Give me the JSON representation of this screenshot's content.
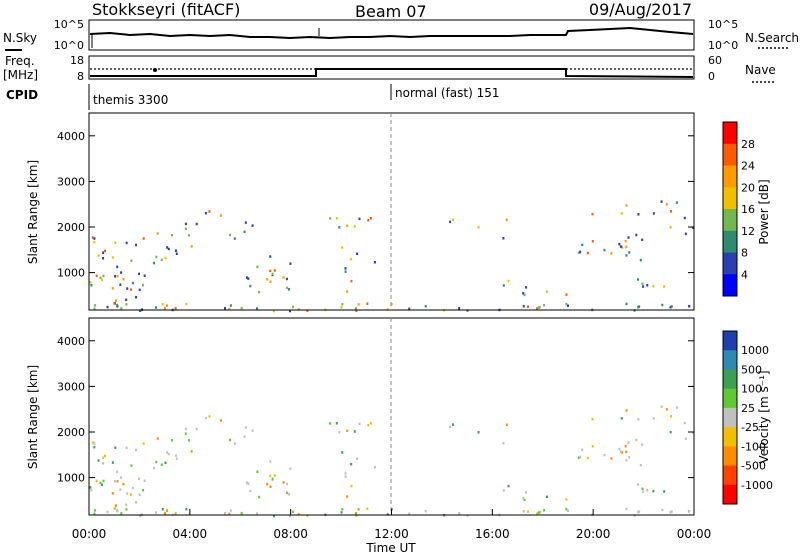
{
  "header": {
    "station": "Stokkseyri (fitACF)",
    "beam": "Beam 07",
    "date": "09/Aug/2017"
  },
  "noise_panel": {
    "left_label": "N.Sky",
    "right_label": "N.Search",
    "left_ticks": [
      "10^5",
      "10^0"
    ],
    "right_ticks": [
      "10^5",
      "10^0"
    ]
  },
  "freq_panel": {
    "left_label_1": "Freq.",
    "left_label_2": "[MHz]",
    "right_label": "Nave",
    "left_ticks": [
      "18",
      "8"
    ],
    "right_ticks": [
      "60",
      "0"
    ]
  },
  "cpid": {
    "label": "CPID",
    "segments": [
      {
        "name": "themis 3300",
        "start_hour": 0
      },
      {
        "name": "normal (fast) 151",
        "start_hour": 12
      }
    ]
  },
  "chart_data": [
    {
      "type": "heatmap",
      "name": "power",
      "ylabel": "Slant Range [km]",
      "xlabel": "",
      "colorbar_label": "Power [dB]",
      "colorbar_ticks": [
        "28",
        "24",
        "20",
        "16",
        "12",
        "8",
        "4"
      ],
      "colorbar_colors": [
        "#ff0000",
        "#ff5a00",
        "#ff9a00",
        "#f0c000",
        "#70b850",
        "#2e8a70",
        "#2840b0",
        "#0000ff"
      ],
      "y_ticks": [
        "4000",
        "3000",
        "2000",
        "1000"
      ],
      "ylim": [
        180,
        4500
      ],
      "xlim": [
        0,
        24
      ]
    },
    {
      "type": "heatmap",
      "name": "velocity",
      "ylabel": "Slant Range [km]",
      "xlabel": "Time UT",
      "colorbar_label": "Velocity [m s⁻¹]",
      "colorbar_ticks": [
        "1000",
        "500",
        "100",
        "25",
        "-25",
        "-100",
        "-500",
        "-1000"
      ],
      "colorbar_colors": [
        "#1c40b0",
        "#2e8ab0",
        "#3ca050",
        "#60c830",
        "#c0c0c0",
        "#f0c000",
        "#ff8c00",
        "#ff4000",
        "#ff0000"
      ],
      "y_ticks": [
        "4000",
        "3000",
        "2000",
        "1000"
      ],
      "x_ticks": [
        "00:00",
        "04:00",
        "08:00",
        "12:00",
        "16:00",
        "20:00",
        "00:00"
      ],
      "ylim": [
        180,
        4500
      ],
      "xlim": [
        0,
        24
      ]
    }
  ]
}
